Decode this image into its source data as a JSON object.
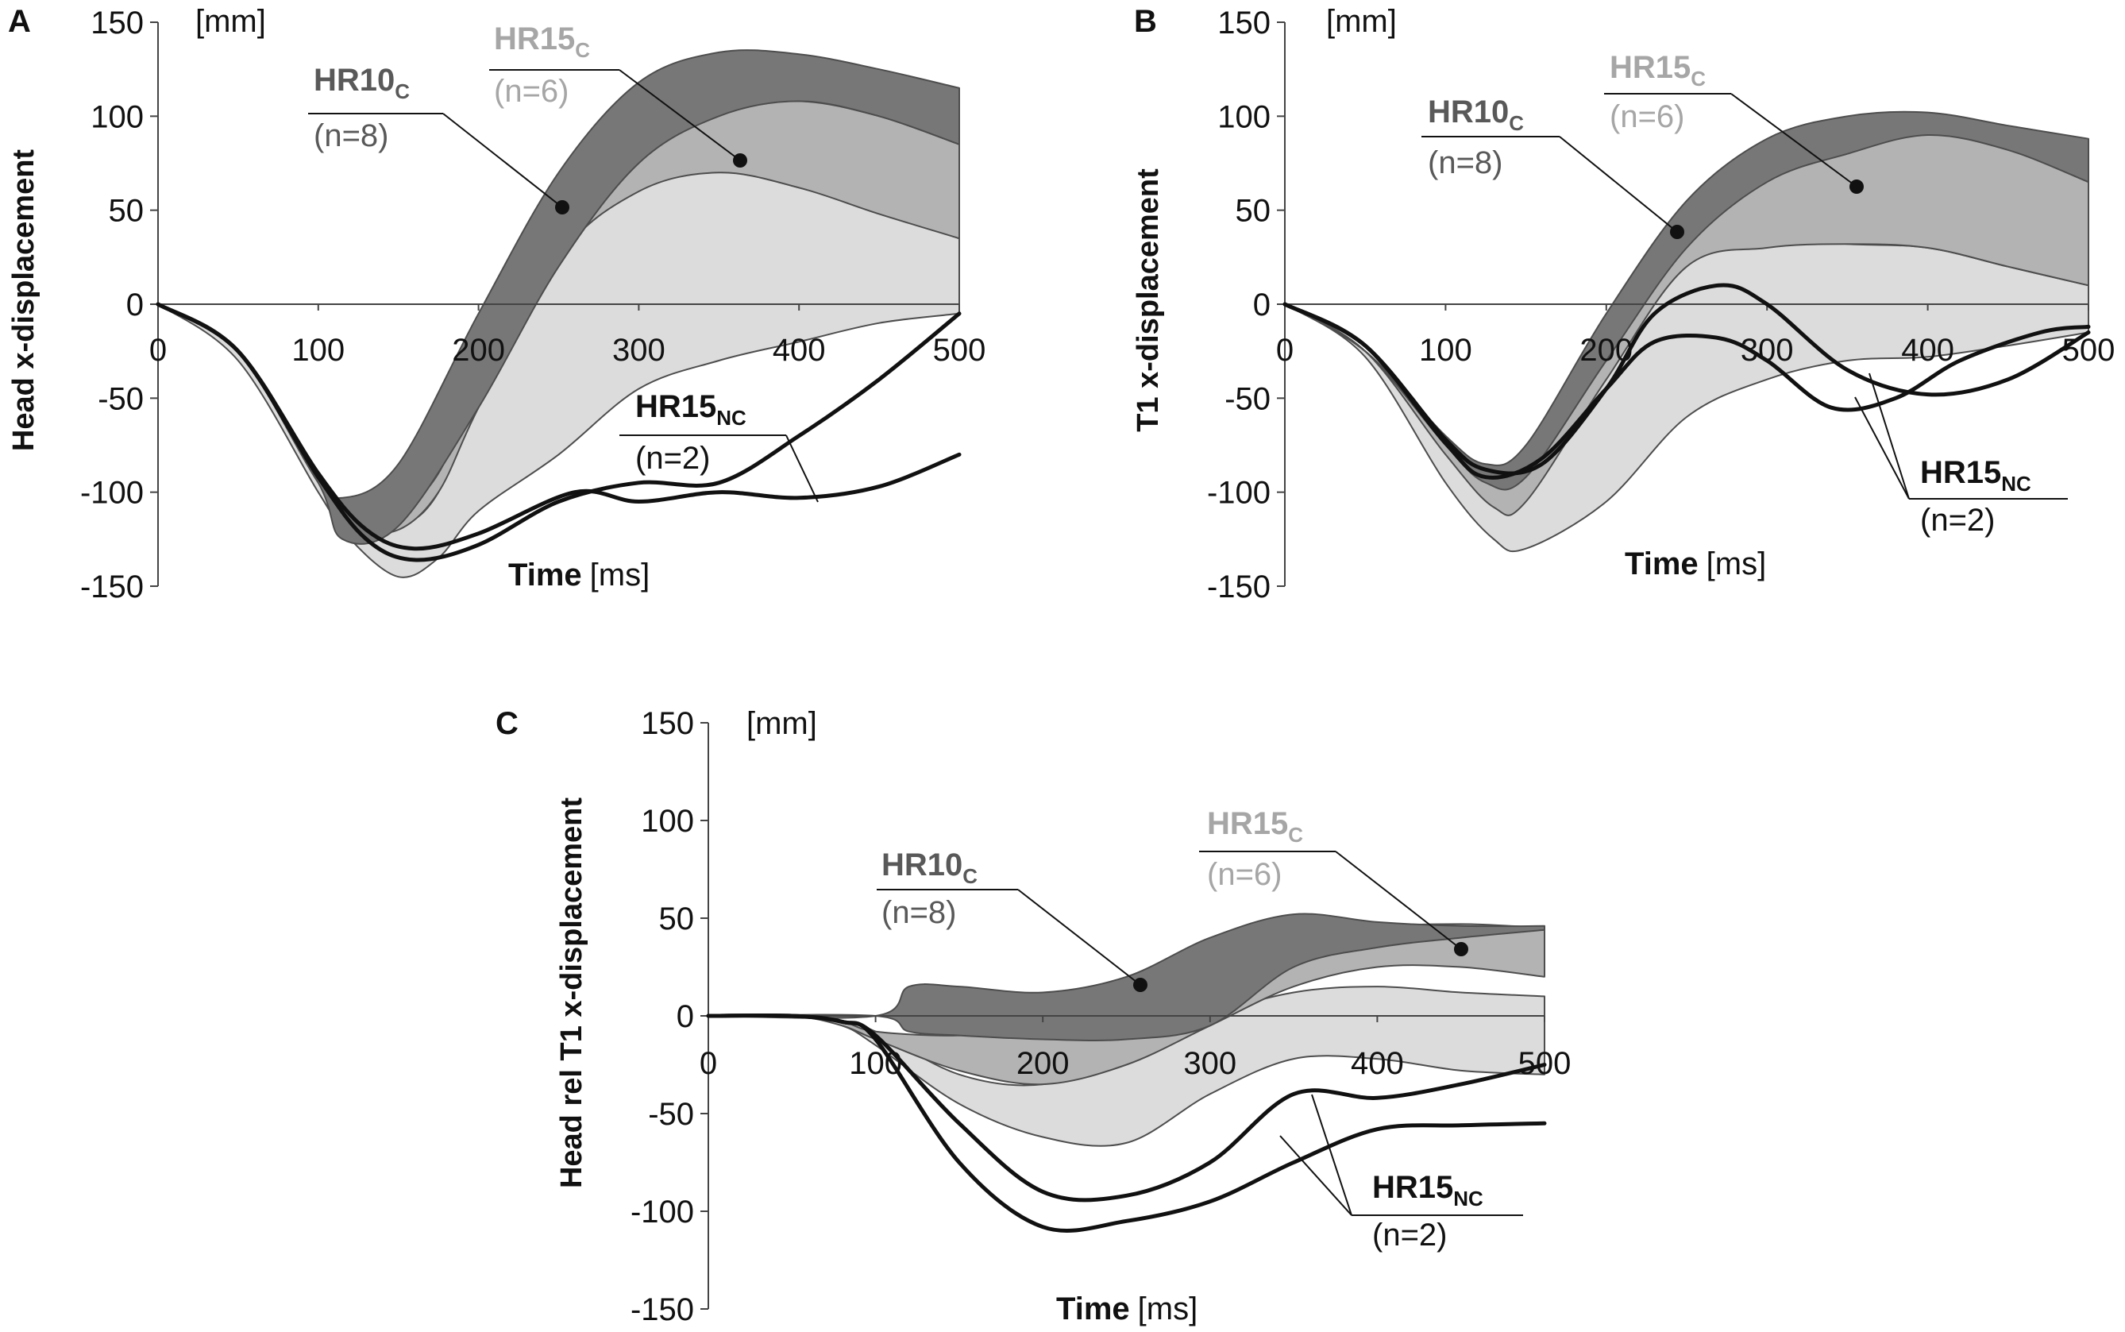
{
  "figure": {
    "colors": {
      "hr10_band": "#777777",
      "hr15_mid_band": "#b3b3b3",
      "hr15_light_band": "#dcdcdc",
      "band_edge": "#4d4d4d",
      "nc_line": "#111111",
      "hr10_text": "#595959",
      "hr15_text": "#a6a6a6",
      "nc_text": "#111111"
    },
    "labels": {
      "hr10": "HR10",
      "hr15": "HR15",
      "sub_c": "C",
      "sub_nc": "NC",
      "n_hr10": "(n=8)",
      "n_hr15": "(n=6)",
      "n_nc": "(n=2)"
    }
  },
  "chart_data": [
    {
      "panel": "A",
      "type": "area",
      "ylabel": "Head  x-displacement",
      "unit": "[mm]",
      "xlabel_bold": "Time",
      "xlabel_unit": "[ms]",
      "xlim": [
        0,
        500
      ],
      "ylim": [
        -150,
        150
      ],
      "xticks": [
        "0",
        "100",
        "200",
        "300",
        "400",
        "500"
      ],
      "yticks": [
        "150",
        "100",
        "50",
        "0",
        "-50",
        "-100",
        "-150"
      ],
      "series": [
        {
          "name": "HR15C light band",
          "x": [
            0,
            50,
            100,
            120,
            150,
            175,
            200,
            250,
            300,
            350,
            400,
            450,
            500
          ],
          "upper": [
            0,
            -25,
            -90,
            -112,
            -118,
            -100,
            -45,
            30,
            68,
            72,
            62,
            50,
            35
          ],
          "lower": [
            0,
            -30,
            -100,
            -125,
            -145,
            -135,
            -110,
            -80,
            -45,
            -30,
            -20,
            -10,
            -5
          ]
        },
        {
          "name": "HR15C mid band",
          "x": [
            0,
            50,
            100,
            125,
            150,
            175,
            200,
            250,
            300,
            350,
            400,
            450,
            500
          ],
          "upper": [
            0,
            -25,
            -90,
            -112,
            -110,
            -90,
            -40,
            40,
            85,
            102,
            108,
            100,
            85
          ],
          "lower": [
            0,
            -25,
            -95,
            -118,
            -120,
            -100,
            -55,
            25,
            60,
            70,
            62,
            48,
            35
          ]
        },
        {
          "name": "HR10C band",
          "x": [
            0,
            50,
            100,
            115,
            150,
            200,
            250,
            300,
            350,
            400,
            450,
            500
          ],
          "upper": [
            0,
            -25,
            -90,
            -103,
            -85,
            -5,
            70,
            118,
            134,
            133,
            125,
            115
          ],
          "lower": [
            0,
            -25,
            -95,
            -125,
            -118,
            -55,
            20,
            75,
            100,
            108,
            100,
            85
          ]
        },
        {
          "name": "HR15NC line 1",
          "x": [
            0,
            50,
            100,
            130,
            160,
            200,
            260,
            300,
            350,
            400,
            450,
            500
          ],
          "values": [
            0,
            -25,
            -90,
            -120,
            -130,
            -122,
            -100,
            -105,
            -100,
            -103,
            -97,
            -80
          ]
        },
        {
          "name": "HR15NC line 2",
          "x": [
            0,
            50,
            100,
            130,
            160,
            200,
            250,
            300,
            350,
            400,
            450,
            500
          ],
          "values": [
            0,
            -25,
            -92,
            -125,
            -136,
            -128,
            -105,
            -95,
            -95,
            -70,
            -40,
            -5
          ]
        }
      ],
      "annotations": [
        {
          "label": "HR10C",
          "n": "(n=8)"
        },
        {
          "label": "HR15C",
          "n": "(n=6)"
        },
        {
          "label": "HR15NC",
          "n": "(n=2)"
        }
      ]
    },
    {
      "panel": "B",
      "type": "area",
      "ylabel": "T1 x-displacement",
      "unit": "[mm]",
      "xlabel_bold": "Time",
      "xlabel_unit": "[ms]",
      "xlim": [
        0,
        500
      ],
      "ylim": [
        -150,
        150
      ],
      "xticks": [
        "0",
        "100",
        "200",
        "300",
        "400",
        "500"
      ],
      "yticks": [
        "150",
        "100",
        "50",
        "0",
        "-50",
        "-100",
        "-150"
      ],
      "series": [
        {
          "name": "HR15C light band",
          "x": [
            0,
            50,
            100,
            130,
            150,
            200,
            250,
            300,
            350,
            400,
            450,
            500
          ],
          "upper": [
            0,
            -25,
            -72,
            -88,
            -85,
            -20,
            25,
            35,
            32,
            30,
            20,
            10
          ],
          "lower": [
            0,
            -28,
            -95,
            -125,
            -130,
            -105,
            -60,
            -40,
            -30,
            -28,
            -22,
            -15
          ]
        },
        {
          "name": "HR15C mid band",
          "x": [
            0,
            50,
            100,
            130,
            150,
            200,
            250,
            300,
            350,
            400,
            450,
            500
          ],
          "upper": [
            0,
            -25,
            -72,
            -87,
            -84,
            -15,
            50,
            80,
            92,
            95,
            85,
            65
          ],
          "lower": [
            0,
            -25,
            -80,
            -108,
            -105,
            -40,
            20,
            30,
            32,
            30,
            20,
            10
          ]
        },
        {
          "name": "HR10C band",
          "x": [
            0,
            50,
            100,
            125,
            150,
            200,
            250,
            300,
            350,
            400,
            450,
            500
          ],
          "upper": [
            0,
            -25,
            -70,
            -85,
            -75,
            -5,
            55,
            88,
            100,
            102,
            95,
            88
          ],
          "lower": [
            0,
            -25,
            -75,
            -95,
            -92,
            -30,
            30,
            65,
            80,
            90,
            82,
            65
          ]
        },
        {
          "name": "HR15NC line 1",
          "x": [
            0,
            50,
            100,
            125,
            160,
            200,
            230,
            270,
            300,
            350,
            400,
            450,
            500
          ],
          "values": [
            0,
            -22,
            -72,
            -88,
            -85,
            -45,
            -5,
            10,
            0,
            -35,
            -48,
            -40,
            -15
          ]
        },
        {
          "name": "HR15NC line 2",
          "x": [
            0,
            50,
            100,
            125,
            160,
            200,
            230,
            270,
            300,
            340,
            380,
            420,
            470,
            500
          ],
          "values": [
            0,
            -22,
            -74,
            -92,
            -82,
            -45,
            -20,
            -18,
            -30,
            -55,
            -50,
            -30,
            -15,
            -12
          ]
        }
      ],
      "annotations": [
        {
          "label": "HR10C",
          "n": "(n=8)"
        },
        {
          "label": "HR15C",
          "n": "(n=6)"
        },
        {
          "label": "HR15NC",
          "n": "(n=2)"
        }
      ]
    },
    {
      "panel": "C",
      "type": "area",
      "ylabel": "Head rel T1 x-displacement",
      "unit": "[mm]",
      "xlabel_bold": "Time",
      "xlabel_unit": "[ms]",
      "xlim": [
        0,
        500
      ],
      "ylim": [
        -150,
        150
      ],
      "xticks": [
        "0",
        "100",
        "200",
        "300",
        "400",
        "500"
      ],
      "yticks": [
        "150",
        "100",
        "50",
        "0",
        "-50",
        "-100",
        "-150"
      ],
      "series": [
        {
          "name": "HR15C light band",
          "x": [
            0,
            50,
            80,
            100,
            150,
            200,
            250,
            300,
            350,
            400,
            450,
            500
          ],
          "upper": [
            0,
            0,
            -3,
            -8,
            -30,
            -35,
            -20,
            0,
            12,
            15,
            12,
            10
          ],
          "lower": [
            0,
            0,
            -5,
            -15,
            -45,
            -62,
            -65,
            -40,
            -22,
            -22,
            -28,
            -30
          ]
        },
        {
          "name": "HR15C mid band",
          "x": [
            0,
            50,
            80,
            100,
            150,
            200,
            250,
            300,
            350,
            400,
            450,
            500
          ],
          "upper": [
            0,
            0,
            -3,
            -8,
            -10,
            -5,
            0,
            20,
            35,
            45,
            47,
            45
          ],
          "lower": [
            0,
            0,
            -5,
            -12,
            -28,
            -35,
            -25,
            -5,
            15,
            25,
            25,
            20
          ]
        },
        {
          "name": "HR10C band",
          "x": [
            0,
            100,
            120,
            150,
            200,
            250,
            300,
            350,
            400,
            450,
            500
          ],
          "upper": [
            0,
            0,
            15,
            15,
            12,
            20,
            40,
            52,
            48,
            46,
            46
          ],
          "lower": [
            0,
            0,
            -8,
            -10,
            -12,
            -12,
            -5,
            25,
            35,
            40,
            44
          ]
        },
        {
          "name": "HR15NC line 1",
          "x": [
            0,
            50,
            80,
            100,
            150,
            200,
            250,
            300,
            350,
            400,
            450,
            500
          ],
          "values": [
            0,
            0,
            -3,
            -10,
            -55,
            -90,
            -92,
            -75,
            -40,
            -42,
            -35,
            -25
          ]
        },
        {
          "name": "HR15NC line 2",
          "x": [
            0,
            50,
            80,
            100,
            150,
            200,
            250,
            300,
            350,
            400,
            450,
            500
          ],
          "values": [
            0,
            0,
            -3,
            -12,
            -75,
            -108,
            -105,
            -95,
            -75,
            -58,
            -56,
            -55
          ]
        }
      ],
      "annotations": [
        {
          "label": "HR10C",
          "n": "(n=8)"
        },
        {
          "label": "HR15C",
          "n": "(n=6)"
        },
        {
          "label": "HR15NC",
          "n": "(n=2)"
        }
      ]
    }
  ]
}
